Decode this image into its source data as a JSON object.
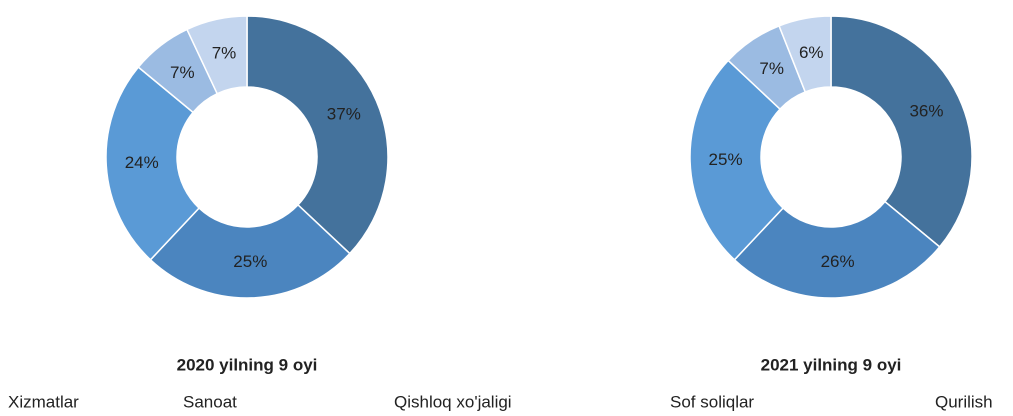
{
  "chart_data": [
    {
      "type": "pie",
      "title": "2020 yilning 9 oyi",
      "values": [
        37,
        25,
        24,
        7,
        7
      ],
      "value_labels": [
        "37%",
        "25%",
        "24%",
        "7%",
        "7%"
      ],
      "colors": [
        "#44729c",
        "#4b85bf",
        "#5a9ad6",
        "#9bbbe2",
        "#c3d5ee"
      ]
    },
    {
      "type": "pie",
      "title": "2021 yilning 9 oyi",
      "values": [
        36,
        26,
        25,
        7,
        6
      ],
      "value_labels": [
        "36%",
        "26%",
        "25%",
        "7%",
        "6%"
      ],
      "colors": [
        "#44729c",
        "#4b85bf",
        "#5a9ad6",
        "#9bbbe2",
        "#c3d5ee"
      ]
    }
  ],
  "legend": {
    "labels": [
      "Xizmatlar",
      "Sanoat",
      "Qishloq xo'jaligi",
      "Sof soliqlar",
      "Qurilish"
    ]
  }
}
